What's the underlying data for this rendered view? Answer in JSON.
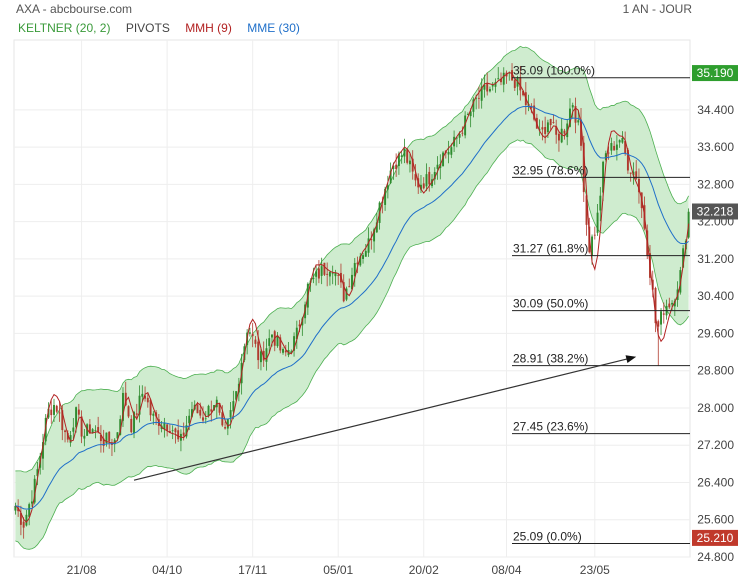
{
  "header": {
    "title": "AXA - abcbourse.com",
    "period": "1 AN - JOUR"
  },
  "legend": [
    {
      "label": "KELTNER (20, 2)",
      "color": "#3a9a3a"
    },
    {
      "label": "PIVOTS",
      "color": "#444444"
    },
    {
      "label": "MMH (9)",
      "color": "#b22222"
    },
    {
      "label": "MME (30)",
      "color": "#1f6fc9"
    }
  ],
  "colors": {
    "band_fill": "#cfeccf",
    "band_line": "#4caf50",
    "up": "#2e8b2e",
    "down": "#b03a2e",
    "mmh": "#b22222",
    "mme": "#1f6fc9",
    "last_price_bg": "#555555",
    "high_bg": "#2e9e2e",
    "low_bg": "#c0392b"
  },
  "chart_data": {
    "type": "candlestick",
    "ylim": [
      24.8,
      35.9
    ],
    "y_ticks": [
      "34.400",
      "33.600",
      "32.800",
      "32.000",
      "31.200",
      "30.400",
      "29.600",
      "28.800",
      "28.000",
      "27.200",
      "26.400",
      "25.600",
      "24.800"
    ],
    "x_ticks": [
      "21/08",
      "04/10",
      "17/11",
      "05/01",
      "20/02",
      "08/04",
      "23/05"
    ],
    "x_tick_index": [
      24,
      55,
      86,
      117,
      148,
      178,
      210
    ],
    "n_candles": 245,
    "close_path": [
      [
        0,
        25.9
      ],
      [
        4,
        25.5
      ],
      [
        10,
        26.4
      ],
      [
        16,
        27.9
      ],
      [
        20,
        28.1
      ],
      [
        26,
        27.3
      ],
      [
        30,
        27.9
      ],
      [
        34,
        27.4
      ],
      [
        38,
        27.6
      ],
      [
        44,
        27.3
      ],
      [
        50,
        27.3
      ],
      [
        54,
        28.3
      ],
      [
        58,
        27.6
      ],
      [
        64,
        28.4
      ],
      [
        68,
        27.8
      ],
      [
        74,
        27.7
      ],
      [
        78,
        27.6
      ],
      [
        82,
        27.2
      ],
      [
        88,
        28.0
      ],
      [
        94,
        27.8
      ],
      [
        100,
        28.2
      ],
      [
        104,
        27.3
      ],
      [
        110,
        28.3
      ],
      [
        116,
        29.8
      ],
      [
        122,
        29.0
      ],
      [
        128,
        29.6
      ],
      [
        134,
        29.1
      ],
      [
        140,
        29.5
      ],
      [
        146,
        30.6
      ],
      [
        152,
        30.9
      ],
      [
        158,
        31.1
      ],
      [
        164,
        30.4
      ],
      [
        170,
        31.2
      ],
      [
        176,
        31.5
      ],
      [
        182,
        32.4
      ],
      [
        188,
        33.2
      ],
      [
        194,
        33.5
      ],
      [
        200,
        32.8
      ],
      [
        206,
        32.9
      ],
      [
        212,
        33.4
      ],
      [
        218,
        33.6
      ],
      [
        224,
        34.1
      ],
      [
        230,
        34.6
      ],
      [
        234,
        34.8
      ],
      [
        240,
        34.9
      ],
      [
        246,
        35.1
      ],
      [
        250,
        35.0
      ],
      [
        254,
        34.6
      ],
      [
        258,
        34.3
      ],
      [
        262,
        33.8
      ],
      [
        266,
        34.2
      ],
      [
        270,
        33.8
      ],
      [
        274,
        34.0
      ],
      [
        278,
        34.6
      ],
      [
        282,
        33.8
      ],
      [
        286,
        31.4
      ],
      [
        290,
        31.9
      ],
      [
        294,
        33.4
      ],
      [
        298,
        33.6
      ],
      [
        302,
        33.8
      ],
      [
        306,
        33.2
      ],
      [
        310,
        33.0
      ],
      [
        314,
        31.9
      ],
      [
        318,
        30.5
      ],
      [
        320,
        29.6
      ],
      [
        324,
        30.2
      ],
      [
        328,
        30.3
      ],
      [
        332,
        30.9
      ],
      [
        336,
        32.2
      ]
    ],
    "highlight_low": 28.9,
    "pivots": [
      {
        "label": "35.09  (100.0%)",
        "value": 35.09
      },
      {
        "label": "32.95  (78.6%)",
        "value": 32.95
      },
      {
        "label": "31.27  (61.8%)",
        "value": 31.27
      },
      {
        "label": "30.09  (50.0%)",
        "value": 30.09
      },
      {
        "label": "28.91  (38.2%)",
        "value": 28.91
      },
      {
        "label": "27.45  (23.6%)",
        "value": 27.45
      },
      {
        "label": "25.09  (0.0%)",
        "value": 25.09
      }
    ],
    "price_labels": {
      "high": "35.190",
      "last": "32.218",
      "low": "25.210",
      "high_value": 35.19,
      "last_value": 32.218,
      "low_value": 25.21
    },
    "trend_arrow": {
      "from": [
        43,
        26.45
      ],
      "to": [
        225,
        29.1
      ]
    }
  }
}
